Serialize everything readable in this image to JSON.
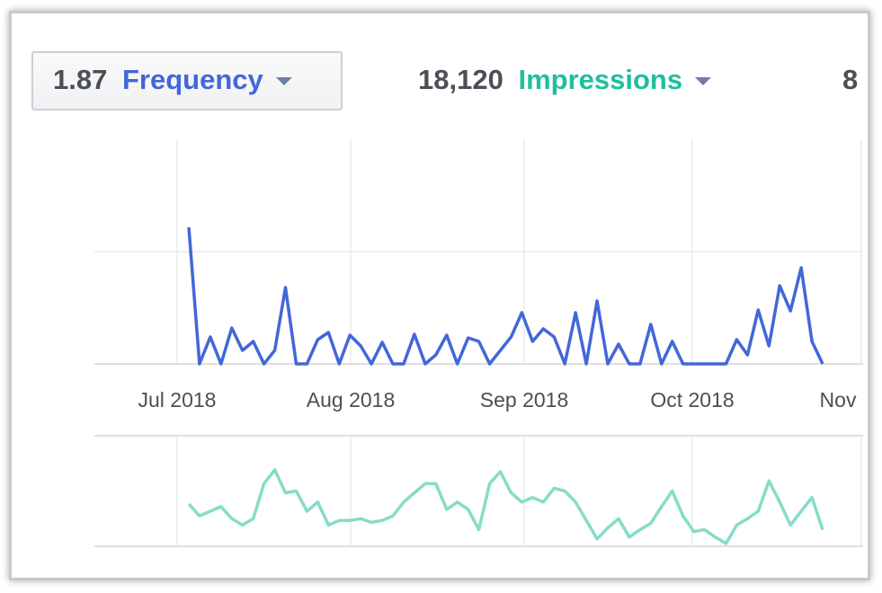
{
  "header": {
    "metrics": [
      {
        "value": "1.87",
        "label": "Frequency"
      },
      {
        "value": "18,120",
        "label": "Impressions"
      },
      {
        "value": "8"
      }
    ]
  },
  "chart_data": [
    {
      "type": "line",
      "ylim": [
        0,
        250
      ],
      "xtick_labels": [
        "Jul 2018",
        "Aug 2018",
        "Sep 2018",
        "Oct 2018",
        "Nov"
      ],
      "series": [
        {
          "name": "Frequency",
          "color": "#4267d8",
          "values": [
            152,
            0,
            30,
            0,
            40,
            15,
            25,
            0,
            15,
            85,
            0,
            0,
            27,
            35,
            0,
            32,
            20,
            0,
            24,
            0,
            0,
            33,
            0,
            10,
            32,
            0,
            29,
            25,
            0,
            15,
            30,
            57,
            25,
            39,
            30,
            0,
            57,
            0,
            70,
            0,
            22,
            0,
            0,
            44,
            0,
            25,
            0,
            0,
            0,
            0,
            0,
            27,
            10,
            60,
            20,
            87,
            59,
            107,
            25,
            0
          ]
        }
      ]
    },
    {
      "type": "line",
      "ylim": [
        0,
        120
      ],
      "series": [
        {
          "name": "Impressions",
          "color": "#86dcc8",
          "values": [
            46,
            33,
            38,
            43,
            30,
            23,
            30,
            68,
            83,
            58,
            60,
            38,
            48,
            23,
            28,
            28,
            30,
            26,
            28,
            33,
            48,
            58,
            68,
            68,
            40,
            48,
            40,
            18,
            68,
            81,
            58,
            48,
            53,
            48,
            63,
            60,
            48,
            28,
            8,
            20,
            30,
            10,
            18,
            25,
            43,
            60,
            33,
            16,
            18,
            10,
            3,
            23,
            30,
            38,
            71,
            48,
            23,
            38,
            53,
            18
          ]
        }
      ]
    }
  ]
}
